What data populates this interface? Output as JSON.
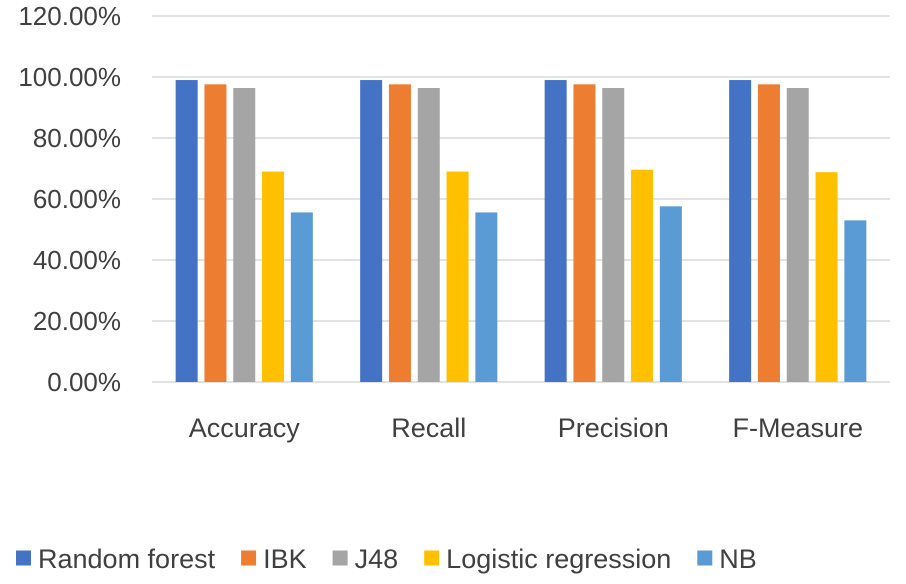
{
  "chart_data": {
    "type": "bar",
    "categories": [
      "Accuracy",
      "Recall",
      "Precision",
      "F-Measure"
    ],
    "series": [
      {
        "name": "Random forest",
        "color": "#4472C4",
        "values": [
          99.0,
          99.0,
          99.0,
          99.0
        ]
      },
      {
        "name": "IBK",
        "color": "#ED7D31",
        "values": [
          97.6,
          97.6,
          97.6,
          97.6
        ]
      },
      {
        "name": "J48",
        "color": "#A5A5A5",
        "values": [
          96.4,
          96.4,
          96.4,
          96.4
        ]
      },
      {
        "name": "Logistic regression",
        "color": "#FFC000",
        "values": [
          69.0,
          69.0,
          69.6,
          68.8
        ]
      },
      {
        "name": "NB",
        "color": "#5B9BD5",
        "values": [
          55.6,
          55.6,
          57.6,
          53.0
        ]
      }
    ],
    "y_ticks": [
      "0.00%",
      "20.00%",
      "40.00%",
      "60.00%",
      "80.00%",
      "100.00%",
      "120.00%"
    ],
    "ylim": [
      0,
      120
    ],
    "grid": true,
    "legend_position": "bottom"
  }
}
